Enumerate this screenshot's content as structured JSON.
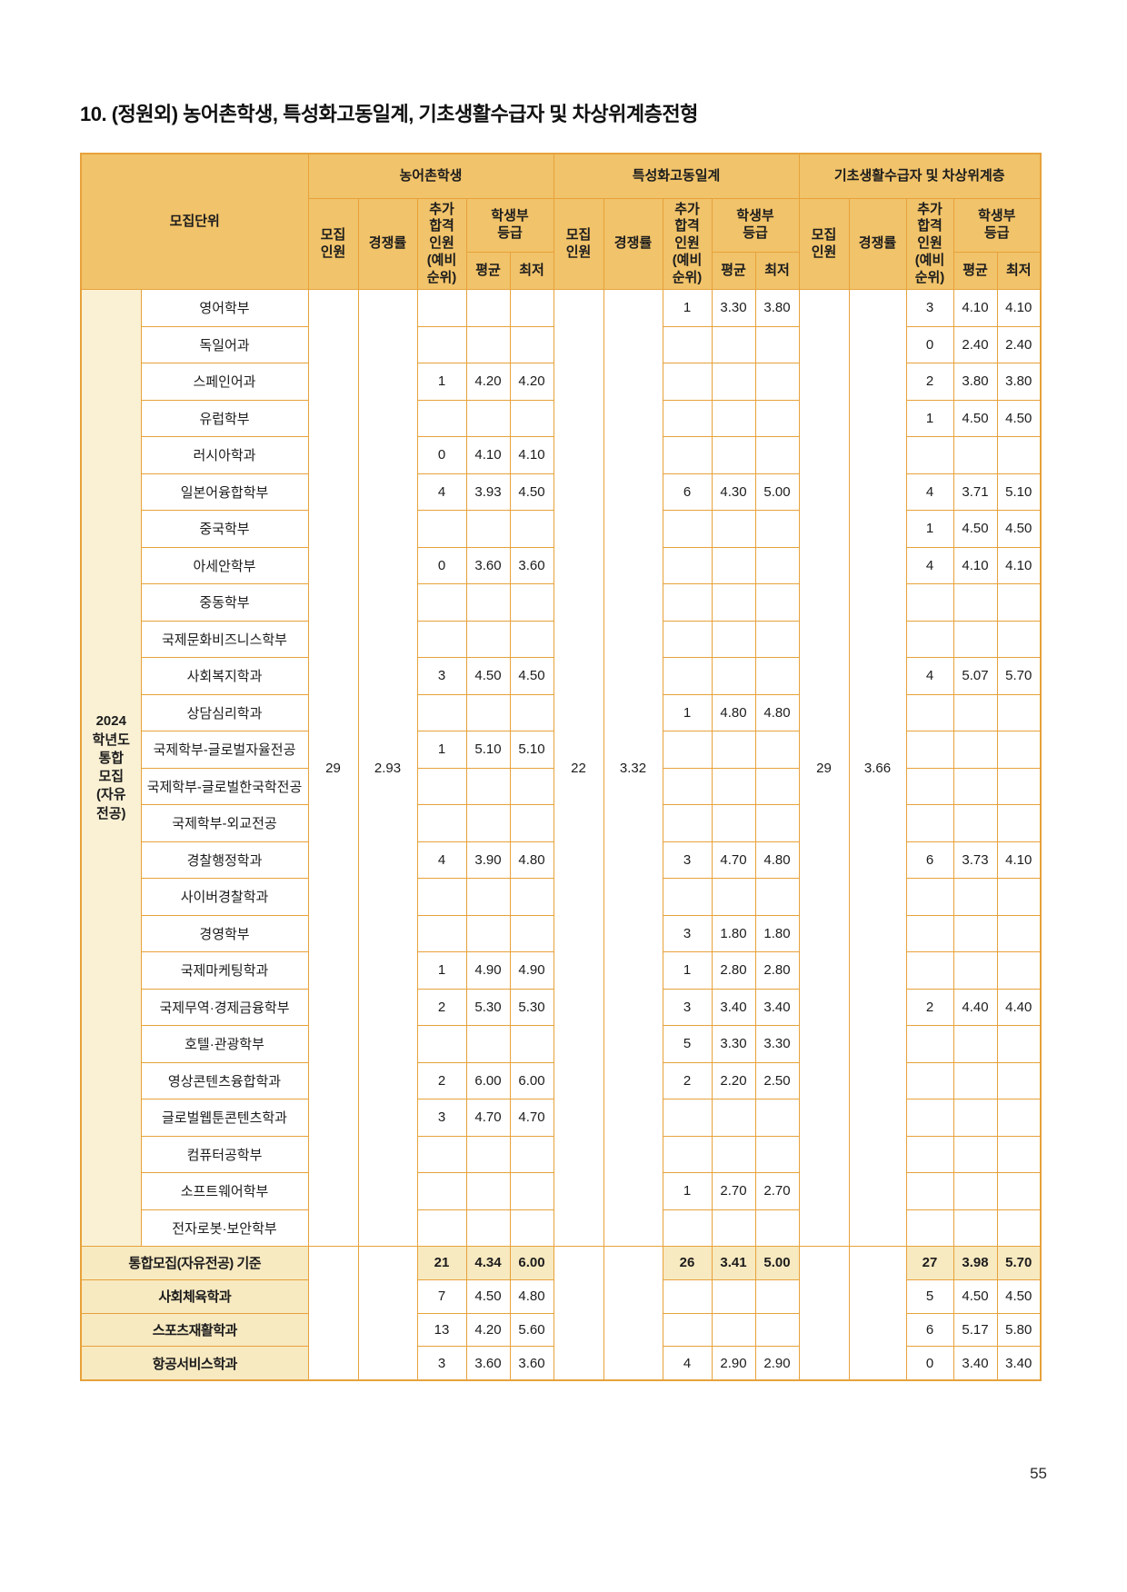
{
  "page": {
    "title": "10. (정원외) 농어촌학생, 특성화고동일계, 기초생활수급자 및 차상위계층전형",
    "page_number": "55"
  },
  "table": {
    "group_headers": [
      "농어촌학생",
      "특성화고동일계",
      "기초생활수급자 및 차상위계층"
    ],
    "col_headers": {
      "unit": "모집단위",
      "quota": "모집\n인원",
      "ratio": "경쟁률",
      "extra": "추가\n합격\n인원\n(예비\n순위)",
      "grade": "학생부\n등급",
      "avg": "평균",
      "min": "최저"
    },
    "row_group_label": "2024\n학년도\n통합\n모집\n(자유\n전공)",
    "merged": {
      "farm": {
        "quota": "29",
        "ratio": "2.93"
      },
      "voc": {
        "quota": "22",
        "ratio": "3.32"
      },
      "basic": {
        "quota": "29",
        "ratio": "3.66"
      }
    },
    "departments": [
      {
        "name": "영어학부",
        "farm": [
          "",
          "",
          ""
        ],
        "voc": [
          "1",
          "3.30",
          "3.80"
        ],
        "basic": [
          "3",
          "4.10",
          "4.10"
        ]
      },
      {
        "name": "독일어과",
        "farm": [
          "",
          "",
          ""
        ],
        "voc": [
          "",
          "",
          ""
        ],
        "basic": [
          "0",
          "2.40",
          "2.40"
        ]
      },
      {
        "name": "스페인어과",
        "farm": [
          "1",
          "4.20",
          "4.20"
        ],
        "voc": [
          "",
          "",
          ""
        ],
        "basic": [
          "2",
          "3.80",
          "3.80"
        ]
      },
      {
        "name": "유럽학부",
        "farm": [
          "",
          "",
          ""
        ],
        "voc": [
          "",
          "",
          ""
        ],
        "basic": [
          "1",
          "4.50",
          "4.50"
        ]
      },
      {
        "name": "러시아학과",
        "farm": [
          "0",
          "4.10",
          "4.10"
        ],
        "voc": [
          "",
          "",
          ""
        ],
        "basic": [
          "",
          "",
          ""
        ]
      },
      {
        "name": "일본어융합학부",
        "farm": [
          "4",
          "3.93",
          "4.50"
        ],
        "voc": [
          "6",
          "4.30",
          "5.00"
        ],
        "basic": [
          "4",
          "3.71",
          "5.10"
        ]
      },
      {
        "name": "중국학부",
        "farm": [
          "",
          "",
          ""
        ],
        "voc": [
          "",
          "",
          ""
        ],
        "basic": [
          "1",
          "4.50",
          "4.50"
        ]
      },
      {
        "name": "아세안학부",
        "farm": [
          "0",
          "3.60",
          "3.60"
        ],
        "voc": [
          "",
          "",
          ""
        ],
        "basic": [
          "4",
          "4.10",
          "4.10"
        ]
      },
      {
        "name": "중동학부",
        "farm": [
          "",
          "",
          ""
        ],
        "voc": [
          "",
          "",
          ""
        ],
        "basic": [
          "",
          "",
          ""
        ]
      },
      {
        "name": "국제문화비즈니스학부",
        "farm": [
          "",
          "",
          ""
        ],
        "voc": [
          "",
          "",
          ""
        ],
        "basic": [
          "",
          "",
          ""
        ]
      },
      {
        "name": "사회복지학과",
        "farm": [
          "3",
          "4.50",
          "4.50"
        ],
        "voc": [
          "",
          "",
          ""
        ],
        "basic": [
          "4",
          "5.07",
          "5.70"
        ]
      },
      {
        "name": "상담심리학과",
        "farm": [
          "",
          "",
          ""
        ],
        "voc": [
          "1",
          "4.80",
          "4.80"
        ],
        "basic": [
          "",
          "",
          ""
        ]
      },
      {
        "name": "국제학부-글로벌자율전공",
        "farm": [
          "1",
          "5.10",
          "5.10"
        ],
        "voc": [
          "",
          "",
          ""
        ],
        "basic": [
          "",
          "",
          ""
        ]
      },
      {
        "name": "국제학부-글로벌한국학전공",
        "farm": [
          "",
          "",
          ""
        ],
        "voc": [
          "",
          "",
          ""
        ],
        "basic": [
          "",
          "",
          ""
        ]
      },
      {
        "name": "국제학부-외교전공",
        "farm": [
          "",
          "",
          ""
        ],
        "voc": [
          "",
          "",
          ""
        ],
        "basic": [
          "",
          "",
          ""
        ]
      },
      {
        "name": "경찰행정학과",
        "farm": [
          "4",
          "3.90",
          "4.80"
        ],
        "voc": [
          "3",
          "4.70",
          "4.80"
        ],
        "basic": [
          "6",
          "3.73",
          "4.10"
        ]
      },
      {
        "name": "사이버경찰학과",
        "farm": [
          "",
          "",
          ""
        ],
        "voc": [
          "",
          "",
          ""
        ],
        "basic": [
          "",
          "",
          ""
        ]
      },
      {
        "name": "경영학부",
        "farm": [
          "",
          "",
          ""
        ],
        "voc": [
          "3",
          "1.80",
          "1.80"
        ],
        "basic": [
          "",
          "",
          ""
        ]
      },
      {
        "name": "국제마케팅학과",
        "farm": [
          "1",
          "4.90",
          "4.90"
        ],
        "voc": [
          "1",
          "2.80",
          "2.80"
        ],
        "basic": [
          "",
          "",
          ""
        ]
      },
      {
        "name": "국제무역·경제금융학부",
        "farm": [
          "2",
          "5.30",
          "5.30"
        ],
        "voc": [
          "3",
          "3.40",
          "3.40"
        ],
        "basic": [
          "2",
          "4.40",
          "4.40"
        ]
      },
      {
        "name": "호텔·관광학부",
        "farm": [
          "",
          "",
          ""
        ],
        "voc": [
          "5",
          "3.30",
          "3.30"
        ],
        "basic": [
          "",
          "",
          ""
        ]
      },
      {
        "name": "영상콘텐츠융합학과",
        "farm": [
          "2",
          "6.00",
          "6.00"
        ],
        "voc": [
          "2",
          "2.20",
          "2.50"
        ],
        "basic": [
          "",
          "",
          ""
        ]
      },
      {
        "name": "글로벌웹툰콘텐츠학과",
        "farm": [
          "3",
          "4.70",
          "4.70"
        ],
        "voc": [
          "",
          "",
          ""
        ],
        "basic": [
          "",
          "",
          ""
        ]
      },
      {
        "name": "컴퓨터공학부",
        "farm": [
          "",
          "",
          ""
        ],
        "voc": [
          "",
          "",
          ""
        ],
        "basic": [
          "",
          "",
          ""
        ]
      },
      {
        "name": "소프트웨어학부",
        "farm": [
          "",
          "",
          ""
        ],
        "voc": [
          "1",
          "2.70",
          "2.70"
        ],
        "basic": [
          "",
          "",
          ""
        ]
      },
      {
        "name": "전자로봇·보안학부",
        "farm": [
          "",
          "",
          ""
        ],
        "voc": [
          "",
          "",
          ""
        ],
        "basic": [
          "",
          "",
          ""
        ]
      }
    ],
    "summary_rows": [
      {
        "name": "통합모집(자유전공) 기준",
        "bold": true,
        "farm": [
          "21",
          "4.34",
          "6.00"
        ],
        "voc": [
          "26",
          "3.41",
          "5.00"
        ],
        "basic": [
          "27",
          "3.98",
          "5.70"
        ]
      },
      {
        "name": "사회체육학과",
        "bold": false,
        "farm": [
          "7",
          "4.50",
          "4.80"
        ],
        "voc": [
          "",
          "",
          ""
        ],
        "basic": [
          "5",
          "4.50",
          "4.50"
        ]
      },
      {
        "name": "스포츠재활학과",
        "bold": false,
        "farm": [
          "13",
          "4.20",
          "5.60"
        ],
        "voc": [
          "",
          "",
          ""
        ],
        "basic": [
          "6",
          "5.17",
          "5.80"
        ]
      },
      {
        "name": "항공서비스학과",
        "bold": false,
        "farm": [
          "3",
          "3.60",
          "3.60"
        ],
        "voc": [
          "4",
          "2.90",
          "2.90"
        ],
        "basic": [
          "0",
          "3.40",
          "3.40"
        ]
      }
    ]
  }
}
